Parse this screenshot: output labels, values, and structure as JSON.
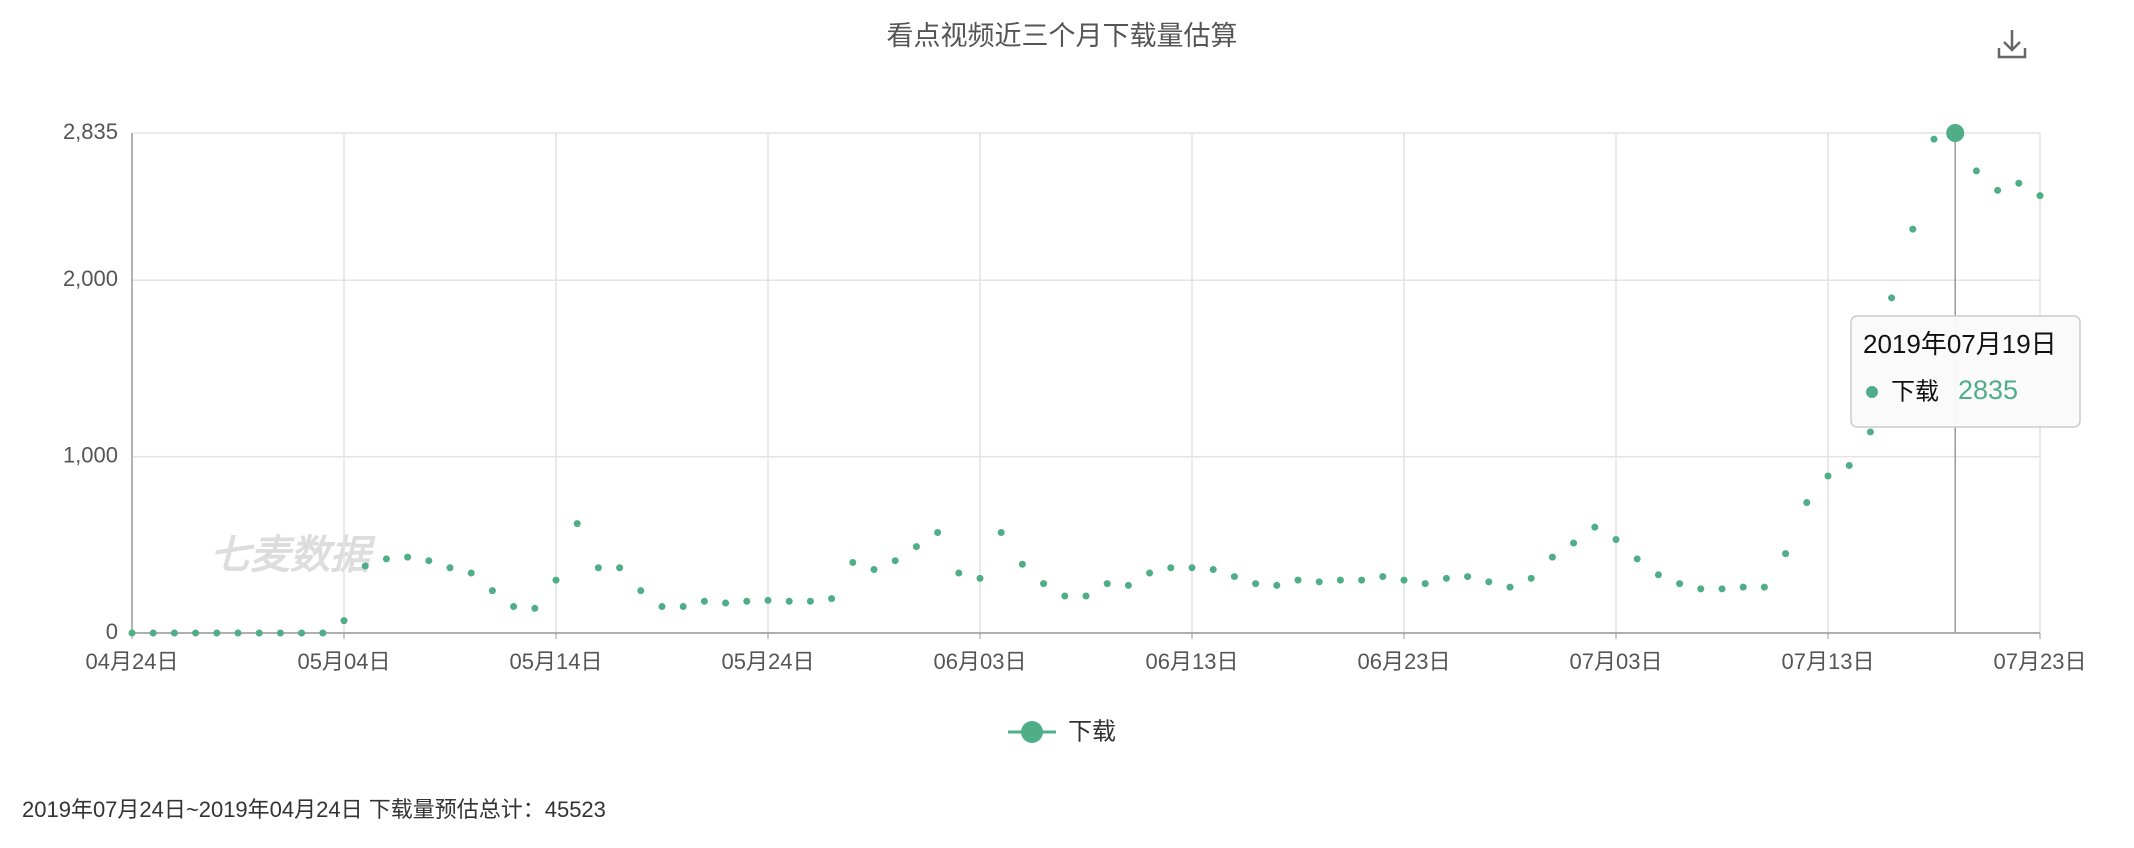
{
  "chart_data": {
    "type": "line",
    "title": "看点视频近三个月下载量估算",
    "categories": [
      "04月24日",
      null,
      null,
      null,
      null,
      null,
      null,
      null,
      null,
      null,
      "05月04日",
      null,
      null,
      null,
      null,
      null,
      null,
      null,
      null,
      null,
      "05月14日",
      null,
      null,
      null,
      null,
      null,
      null,
      null,
      null,
      null,
      "05月24日",
      null,
      null,
      null,
      null,
      null,
      null,
      null,
      null,
      null,
      "06月03日",
      null,
      null,
      null,
      null,
      null,
      null,
      null,
      null,
      null,
      "06月13日",
      null,
      null,
      null,
      null,
      null,
      null,
      null,
      null,
      null,
      "06月23日",
      null,
      null,
      null,
      null,
      null,
      null,
      null,
      null,
      null,
      "07月03日",
      null,
      null,
      null,
      null,
      null,
      null,
      null,
      null,
      null,
      "07月13日",
      null,
      null,
      null,
      null,
      null,
      null,
      null,
      null,
      null,
      "07月23日"
    ],
    "series": [
      {
        "name": "下载",
        "color": "#4fae88",
        "values": [
          0,
          0,
          0,
          0,
          0,
          0,
          0,
          0,
          0,
          0,
          70,
          380,
          420,
          430,
          410,
          370,
          340,
          240,
          150,
          140,
          300,
          620,
          370,
          370,
          240,
          150,
          150,
          180,
          170,
          180,
          185,
          180,
          180,
          195,
          400,
          360,
          410,
          490,
          570,
          340,
          310,
          570,
          390,
          280,
          210,
          210,
          280,
          270,
          340,
          370,
          370,
          360,
          320,
          280,
          270,
          300,
          290,
          300,
          300,
          320,
          300,
          280,
          310,
          320,
          290,
          260,
          310,
          430,
          510,
          600,
          530,
          420,
          330,
          280,
          250,
          250,
          260,
          260,
          450,
          740,
          890,
          950,
          1140,
          1900,
          2290,
          2800,
          2835,
          2620,
          2510,
          2550,
          2480
        ]
      }
    ],
    "ylim": [
      0,
      2835
    ],
    "yticks": [
      0,
      {
        "value": 1000,
        "label": "1,000"
      },
      {
        "value": 2000,
        "label": "2,000"
      },
      {
        "value": 2835,
        "label": "2,835"
      }
    ],
    "grid": true,
    "tooltip_title": "2019年07月19日",
    "watermark": "七麦数据"
  },
  "footer": "2019年07月24日~2019年04月24日 下载量预估总计：45523"
}
